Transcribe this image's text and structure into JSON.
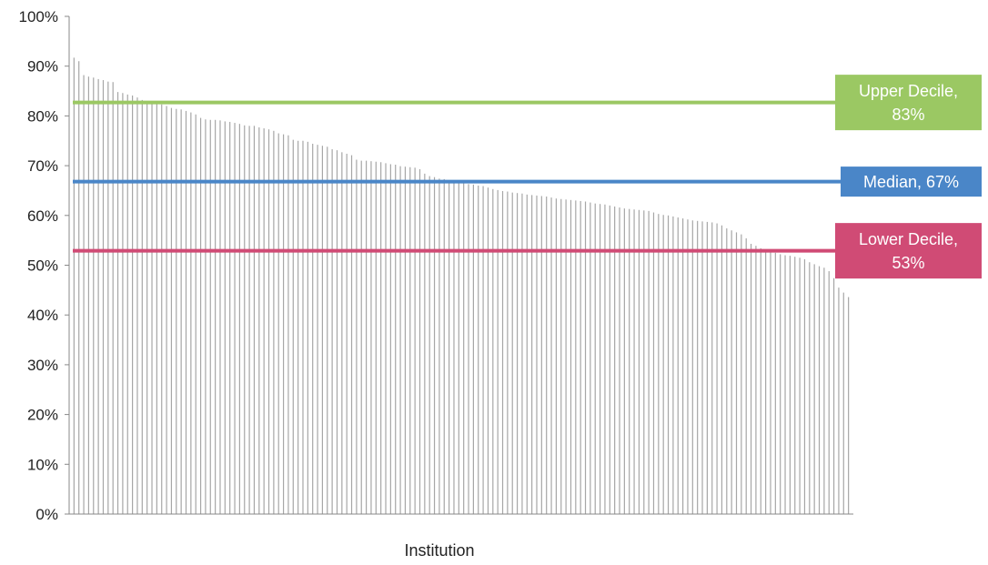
{
  "chart_data": {
    "type": "bar",
    "xlabel": "Institution",
    "ylabel": "",
    "ylim": [
      0,
      100
    ],
    "y_ticks": [
      "0%",
      "10%",
      "20%",
      "30%",
      "40%",
      "50%",
      "60%",
      "70%",
      "80%",
      "90%",
      "100%"
    ],
    "bar_color": "#a6a6a6",
    "grid": false,
    "values": [
      91.7,
      91.0,
      88.2,
      87.9,
      87.7,
      87.4,
      87.2,
      86.9,
      86.8,
      84.8,
      84.6,
      84.3,
      84.1,
      83.7,
      83.2,
      82.9,
      82.8,
      82.6,
      82.3,
      82.0,
      81.6,
      81.4,
      81.3,
      81.0,
      80.7,
      80.3,
      79.6,
      79.3,
      79.2,
      79.2,
      79.1,
      78.9,
      78.8,
      78.6,
      78.4,
      78.1,
      78.0,
      78.0,
      77.7,
      77.5,
      77.3,
      77.0,
      76.5,
      76.3,
      76.1,
      75.2,
      75.0,
      75.0,
      74.8,
      74.4,
      74.2,
      74.0,
      73.8,
      73.3,
      73.1,
      72.7,
      72.4,
      72.1,
      71.2,
      71.0,
      71.0,
      70.9,
      70.8,
      70.7,
      70.5,
      70.3,
      70.2,
      69.9,
      69.8,
      69.7,
      69.6,
      69.3,
      68.4,
      67.9,
      67.7,
      67.4,
      67.3,
      67.0,
      67.0,
      66.7,
      66.5,
      66.3,
      66.2,
      66.0,
      65.9,
      65.6,
      65.3,
      65.1,
      64.9,
      64.8,
      64.6,
      64.5,
      64.4,
      64.2,
      64.1,
      64.0,
      63.9,
      63.8,
      63.6,
      63.4,
      63.3,
      63.2,
      63.1,
      63.0,
      62.9,
      62.8,
      62.6,
      62.4,
      62.3,
      62.2,
      62.0,
      61.8,
      61.6,
      61.4,
      61.3,
      61.2,
      61.1,
      61.0,
      60.9,
      60.6,
      60.3,
      60.1,
      60.0,
      59.8,
      59.6,
      59.4,
      59.2,
      59.0,
      58.9,
      58.8,
      58.7,
      58.6,
      58.4,
      58.0,
      57.4,
      57.0,
      56.6,
      56.2,
      55.4,
      54.3,
      53.9,
      53.4,
      53.0,
      52.9,
      52.5,
      52.2,
      52.0,
      51.9,
      51.7,
      51.5,
      51.2,
      50.6,
      50.2,
      49.8,
      49.5,
      48.8,
      47.4,
      45.5,
      44.5,
      43.6
    ],
    "reference_lines": [
      {
        "label": "Upper Decile,",
        "label2": "83%",
        "value": 82.7,
        "color": "#9bc863"
      },
      {
        "label": "Median, 67%",
        "label2": "",
        "value": 66.8,
        "color": "#4a86c8"
      },
      {
        "label": "Lower Decile,",
        "label2": "53%",
        "value": 52.9,
        "color": "#d04b75"
      }
    ]
  }
}
